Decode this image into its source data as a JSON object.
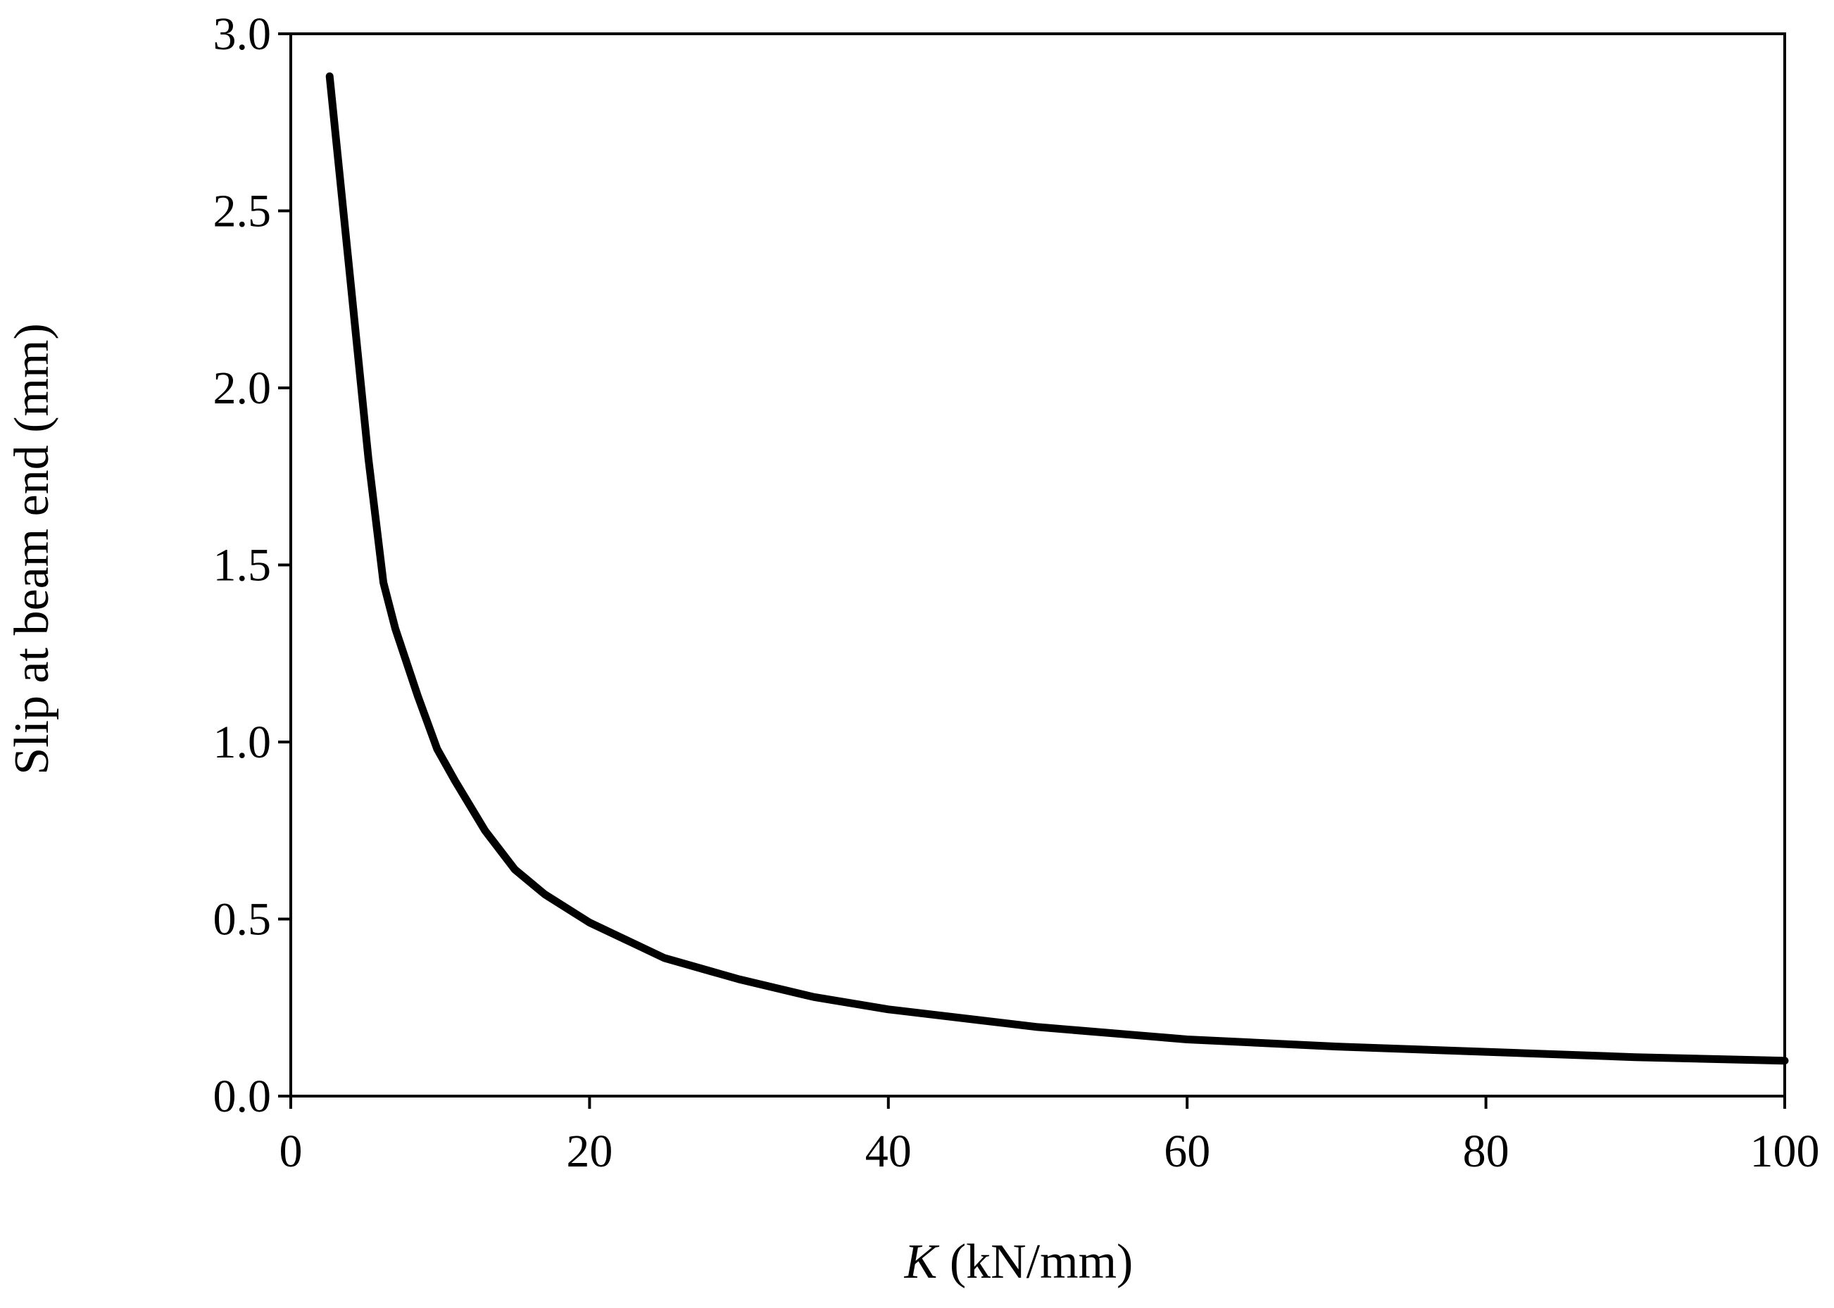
{
  "chart_data": {
    "type": "line",
    "title": "",
    "xlabel_italic": "K",
    "xlabel_rest": " (kN/mm)",
    "ylabel": "Slip at beam end (mm)",
    "xlim": [
      0,
      100
    ],
    "ylim": [
      0,
      3.0
    ],
    "xticks": [
      0,
      20,
      40,
      60,
      80,
      100
    ],
    "xtick_labels": [
      "0",
      "20",
      "40",
      "60",
      "80",
      "100"
    ],
    "yticks": [
      0,
      0.5,
      1.0,
      1.5,
      2.0,
      2.5,
      3.0
    ],
    "ytick_labels": [
      "0.0",
      "0.5",
      "1.0",
      "1.5",
      "2.0",
      "2.5",
      "3.0"
    ],
    "grid": false,
    "legend": "none",
    "line_color": "#000000",
    "series": [
      {
        "x": [
          2.6,
          4.0,
          5.2,
          6.2,
          7.0,
          8.5,
          9.8,
          11.0,
          13.0,
          15.0,
          17.0,
          20.0,
          25.0,
          30.0,
          35.0,
          40.0,
          50.0,
          60.0,
          70.0,
          80.0,
          90.0,
          100.0
        ],
        "y": [
          2.88,
          2.3,
          1.8,
          1.45,
          1.32,
          1.13,
          0.98,
          0.89,
          0.75,
          0.64,
          0.57,
          0.49,
          0.39,
          0.33,
          0.28,
          0.245,
          0.195,
          0.16,
          0.14,
          0.125,
          0.11,
          0.1
        ]
      }
    ]
  }
}
